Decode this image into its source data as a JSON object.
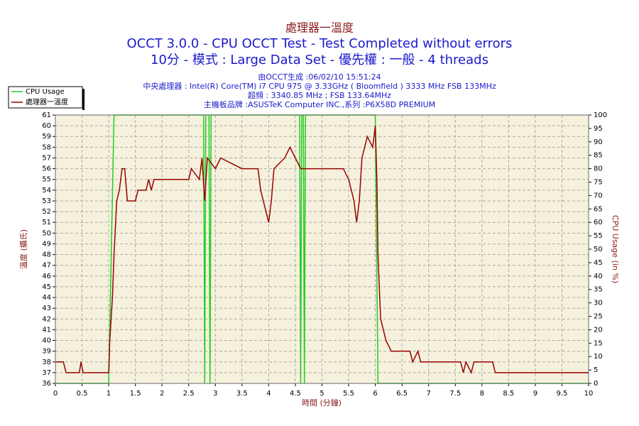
{
  "chart_data": {
    "type": "line",
    "title": "處理器一溫度",
    "subtitle": [
      "OCCT 3.0.0 - CPU OCCT Test - Test Completed without errors",
      "10分 - 模式 : Large Data Set - 優先權 : 一般 - 4 threads"
    ],
    "info": [
      "由OCCT生成 :06/02/10 15:51:24",
      "中央處理器 : Intel(R) Core(TM) i7 CPU 975 @ 3.33GHz ( Bloomfield ) 3333 MHz FSB 133MHz",
      "超頻 : 3340.85 MHz ; FSB 133.64MHz",
      "主機板品牌 :ASUSTeK Computer INC.,系列 :P6X58D PREMIUM"
    ],
    "x_label": "時間 (分鐘)",
    "y_label": "溫度 (攝氏)",
    "y2_label": "CPU Usage (in %)",
    "xlim": [
      0,
      10
    ],
    "xticks": [
      0,
      0.5,
      1,
      1.5,
      2,
      2.5,
      3,
      3.5,
      4,
      4.5,
      5,
      5.5,
      6,
      6.5,
      7,
      7.5,
      8,
      8.5,
      9,
      9.5,
      10
    ],
    "ylim": [
      36,
      61
    ],
    "yticks": [
      36,
      37,
      38,
      39,
      40,
      41,
      42,
      43,
      44,
      45,
      46,
      47,
      48,
      49,
      50,
      51,
      52,
      53,
      54,
      55,
      56,
      57,
      58,
      59,
      60,
      61
    ],
    "y2lim": [
      0,
      100
    ],
    "y2ticks": [
      0,
      5,
      10,
      15,
      20,
      25,
      30,
      35,
      40,
      45,
      50,
      55,
      60,
      65,
      70,
      75,
      80,
      85,
      90,
      95,
      100
    ],
    "grid": true,
    "legend": "top-left",
    "series": [
      {
        "name": "CPU Usage",
        "color": "#22cc22",
        "axis": "y2",
        "x": [
          0,
          1.0,
          1.1,
          2.78,
          2.8,
          2.82,
          2.88,
          2.9,
          2.92,
          4.58,
          4.6,
          4.62,
          4.65,
          4.67,
          4.69,
          6.0,
          6.05,
          10
        ],
        "values": [
          0,
          0,
          100,
          100,
          0,
          100,
          100,
          0,
          100,
          100,
          0,
          100,
          100,
          0,
          100,
          100,
          0,
          0
        ]
      },
      {
        "name": "處理器一溫度",
        "color": "#990000",
        "x": [
          0,
          0.15,
          0.2,
          0.45,
          0.48,
          0.52,
          1.0,
          1.02,
          1.07,
          1.1,
          1.13,
          1.15,
          1.2,
          1.25,
          1.3,
          1.35,
          1.5,
          1.55,
          1.7,
          1.75,
          1.8,
          1.85,
          2.5,
          2.55,
          2.7,
          2.75,
          2.8,
          2.85,
          3.0,
          3.1,
          3.5,
          3.8,
          3.85,
          3.95,
          4.0,
          4.05,
          4.1,
          4.3,
          4.4,
          4.5,
          4.6,
          5.4,
          5.5,
          5.6,
          5.65,
          5.7,
          5.75,
          5.85,
          5.95,
          6.0,
          6.03,
          6.05,
          6.1,
          6.2,
          6.3,
          6.5,
          6.65,
          6.7,
          6.8,
          6.85,
          7.6,
          7.65,
          7.7,
          7.8,
          7.85,
          8.2,
          8.25,
          10
        ],
        "values": [
          38,
          38,
          37,
          37,
          38,
          37,
          37,
          40,
          44,
          48,
          51,
          53,
          54,
          56,
          56,
          53,
          53,
          54,
          54,
          55,
          54,
          55,
          55,
          56,
          55,
          57,
          53,
          57,
          56,
          57,
          56,
          56,
          54,
          52,
          51,
          53,
          56,
          57,
          58,
          57,
          56,
          56,
          55,
          53,
          51,
          53,
          57,
          59,
          58,
          60,
          55,
          48,
          42,
          40,
          39,
          39,
          39,
          38,
          39,
          38,
          38,
          37,
          38,
          37,
          38,
          38,
          37,
          37
        ]
      }
    ]
  }
}
